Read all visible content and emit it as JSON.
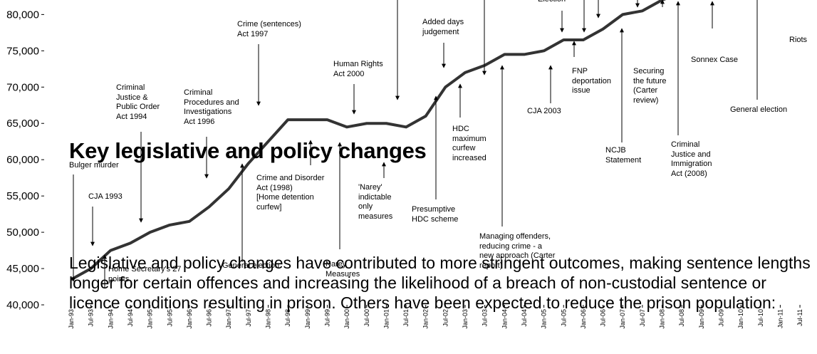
{
  "chart_data": {
    "type": "line",
    "categories": [
      "Jan-93",
      "Jul-93",
      "Jan-94",
      "Jul-94",
      "Jan-95",
      "Jul-95",
      "Jan-96",
      "Jul-96",
      "Jan-97",
      "Jul-97",
      "Jan-98",
      "Jul-98",
      "Jan-99",
      "Jul-99",
      "Jan-00",
      "Jul-00",
      "Jan-01",
      "Jul-01",
      "Jan-02",
      "Jul-02",
      "Jan-03",
      "Jul-03",
      "Jan-04",
      "Jul-04",
      "Jan-05",
      "Jul-05",
      "Jan-06",
      "Jul-06",
      "Jan-07",
      "Jul-07",
      "Jan-08",
      "Jul-08",
      "Jan-09",
      "Jul-09",
      "Jan-10",
      "Jul-10",
      "Jan-11",
      "Jul-11"
    ],
    "series": [
      {
        "color": "#333333",
        "values": [
          43500,
          45000,
          47500,
          48500,
          50000,
          51000,
          51500,
          53500,
          56000,
          59500,
          62500,
          65500,
          65500,
          65500,
          64500,
          65000,
          65000,
          64500,
          66000,
          70000,
          72000,
          73000,
          74500,
          74500,
          75000,
          76500,
          76500,
          78000,
          80000,
          80500,
          82000,
          83000,
          null,
          null,
          null,
          null,
          null,
          null
        ]
      }
    ],
    "ylim": [
      40000,
      82000
    ],
    "yticks": [
      {
        "value": 40000,
        "label": "40,000"
      },
      {
        "value": 45000,
        "label": "45,000"
      },
      {
        "value": 50000,
        "label": "50,000"
      },
      {
        "value": 55000,
        "label": "55,000"
      },
      {
        "value": 60000,
        "label": "60,000"
      },
      {
        "value": 65000,
        "label": "65,000"
      },
      {
        "value": 70000,
        "label": "70,000"
      },
      {
        "value": 75000,
        "label": "75,000"
      },
      {
        "value": 80000,
        "label": "80,000"
      }
    ],
    "annotations": [
      "Bulger murder",
      "CJA 1993",
      "Home Secretary's 27\npoints",
      "Criminal\nJustice &\nPublic Order\nAct 1994",
      "Criminal\nProcedures and\nInvestigations\nAct 1996",
      "General election",
      "Crime (sentences)\nAct 1997",
      "Crime and Disorder\nAct (1998)\n[Home detention\ncurfew]",
      "Narey\nMeasures",
      "Human Rights\nAct 2000",
      "'Narey'\nindictable\nonly\nmeasures",
      "Added days\njudgement",
      "Presumptive\nHDC scheme",
      "HDC\nmaximum\ncurfew\nincreased",
      "Managing offenders,\nreducing crime - a\nnew approach (Carter\nreport)",
      "CJA 2003",
      "Election",
      "FNP\ndeportation\nissue",
      "NCJB\nStatement",
      "Securing\nthe future\n(Carter\nreview)",
      "Criminal\nJustice and\nImmigration\nAct (2008)",
      "Sonnex Case",
      "General election",
      "Riots"
    ]
  },
  "heading": "Key legislative and policy changes",
  "paragraph": "Legislative and policy changes have contributed to more stringent outcomes, making sentence lengths longer for certain offences and increasing the likelihood of a breach of non-custodial sentence or licence conditions resulting in prison. Others have been expected to reduce the prison population:"
}
